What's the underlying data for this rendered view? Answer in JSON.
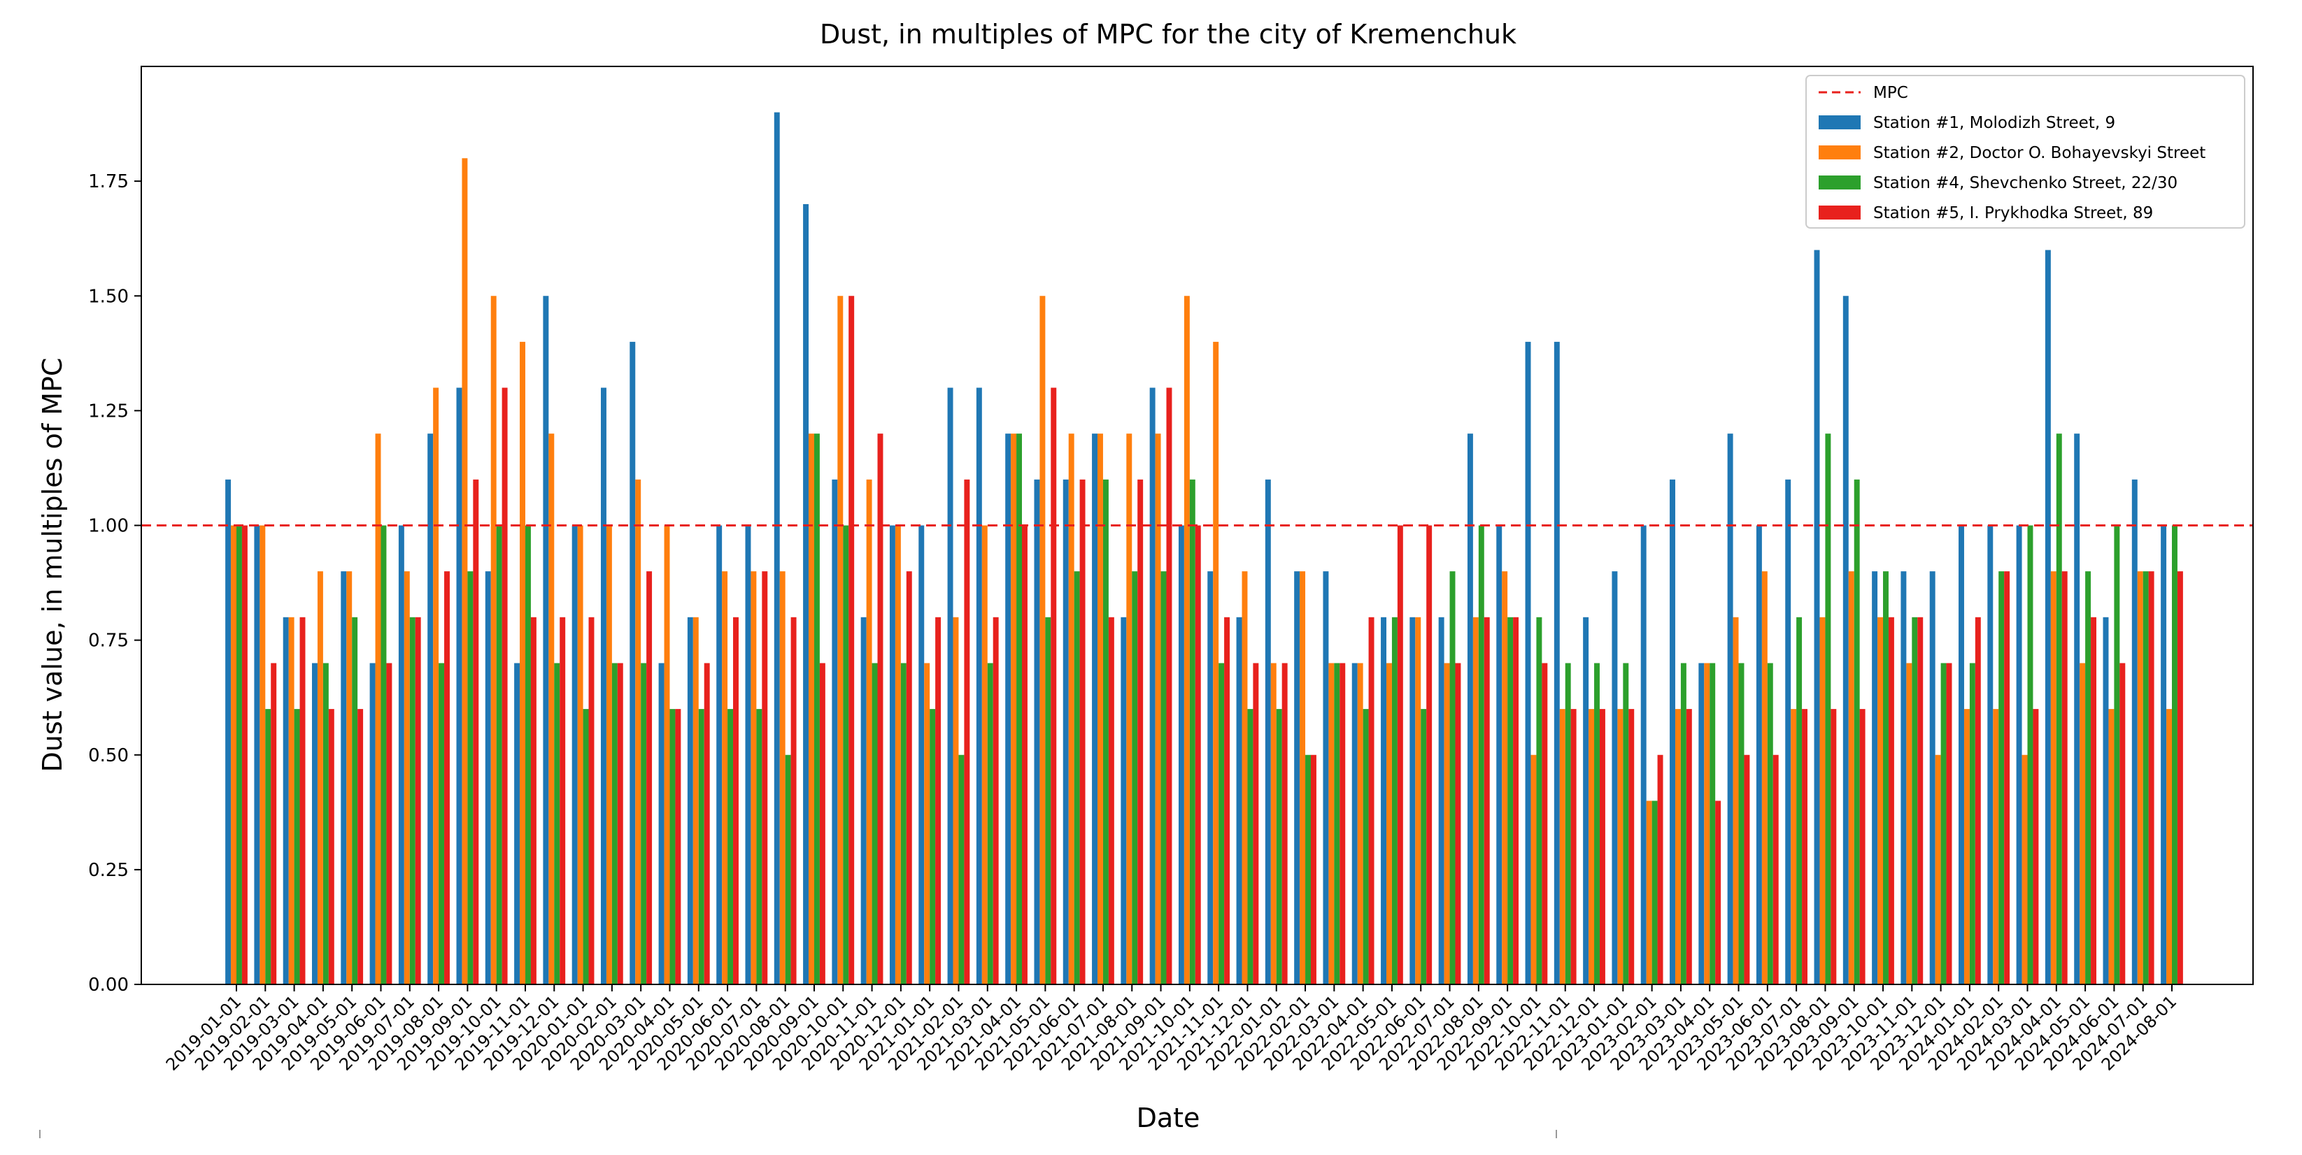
{
  "chart_data": {
    "type": "bar",
    "title": "Dust, in multiples of MPC for the city of Kremenchuk",
    "xlabel": "Date",
    "ylabel": "Dust value, in multiples of MPC",
    "ylim": [
      0,
      2.0
    ],
    "yticks": [
      "0.00",
      "0.25",
      "0.50",
      "0.75",
      "1.00",
      "1.25",
      "1.50",
      "1.75"
    ],
    "grid": false,
    "legend_position": "top-right",
    "reference_line": {
      "name": "MPC",
      "value": 1.0,
      "color": "#e8211d",
      "style": "dashed"
    },
    "categories": [
      "2019-01-01",
      "2019-02-01",
      "2019-03-01",
      "2019-04-01",
      "2019-05-01",
      "2019-06-01",
      "2019-07-01",
      "2019-08-01",
      "2019-09-01",
      "2019-10-01",
      "2019-11-01",
      "2019-12-01",
      "2020-01-01",
      "2020-02-01",
      "2020-03-01",
      "2020-04-01",
      "2020-05-01",
      "2020-06-01",
      "2020-07-01",
      "2020-08-01",
      "2020-09-01",
      "2020-10-01",
      "2020-11-01",
      "2020-12-01",
      "2021-01-01",
      "2021-02-01",
      "2021-03-01",
      "2021-04-01",
      "2021-05-01",
      "2021-06-01",
      "2021-07-01",
      "2021-08-01",
      "2021-09-01",
      "2021-10-01",
      "2021-11-01",
      "2021-12-01",
      "2022-01-01",
      "2022-02-01",
      "2022-03-01",
      "2022-04-01",
      "2022-05-01",
      "2022-06-01",
      "2022-07-01",
      "2022-08-01",
      "2022-09-01",
      "2022-10-01",
      "2022-11-01",
      "2022-12-01",
      "2023-01-01",
      "2023-02-01",
      "2023-03-01",
      "2023-04-01",
      "2023-05-01",
      "2023-06-01",
      "2023-07-01",
      "2023-08-01",
      "2023-09-01",
      "2023-10-01",
      "2023-11-01",
      "2023-12-01",
      "2024-01-01",
      "2024-02-01",
      "2024-03-01",
      "2024-04-01",
      "2024-05-01",
      "2024-06-01",
      "2024-07-01",
      "2024-08-01"
    ],
    "series": [
      {
        "name": "Station #1, Molodizh Street, 9",
        "color": "#1f77b4",
        "values": [
          1.1,
          1.0,
          0.8,
          0.7,
          0.9,
          0.7,
          1.0,
          1.2,
          1.3,
          0.9,
          0.7,
          1.5,
          1.0,
          1.3,
          1.4,
          0.7,
          0.8,
          1.0,
          1.0,
          1.9,
          1.7,
          1.1,
          0.8,
          1.0,
          1.0,
          1.3,
          1.3,
          1.2,
          1.1,
          1.1,
          1.2,
          0.8,
          1.3,
          1.0,
          0.9,
          0.8,
          1.1,
          0.9,
          0.9,
          0.7,
          0.8,
          0.8,
          0.8,
          1.2,
          1.0,
          1.4,
          1.4,
          0.8,
          0.9,
          1.0,
          1.1,
          0.7,
          1.2,
          1.0,
          1.1,
          1.6,
          1.5,
          0.9,
          0.9,
          0.9,
          1.0,
          1.0,
          1.0,
          1.6,
          1.2,
          0.8,
          1.1,
          1.0
        ]
      },
      {
        "name": "Station #2, Doctor O. Bohayevskyi Street",
        "color": "#ff7f0e",
        "values": [
          1.0,
          1.0,
          0.8,
          0.9,
          0.9,
          1.2,
          0.9,
          1.3,
          1.8,
          1.5,
          1.4,
          1.2,
          1.0,
          1.0,
          1.1,
          1.0,
          0.8,
          0.9,
          0.9,
          0.9,
          1.2,
          1.5,
          1.1,
          1.0,
          0.7,
          0.8,
          1.0,
          1.2,
          1.5,
          1.2,
          1.2,
          1.2,
          1.2,
          1.5,
          1.4,
          0.9,
          0.7,
          0.9,
          0.7,
          0.7,
          0.7,
          0.8,
          0.7,
          0.8,
          0.9,
          0.5,
          0.6,
          0.6,
          0.6,
          0.4,
          0.6,
          0.7,
          0.8,
          0.9,
          0.6,
          0.8,
          0.9,
          0.8,
          0.7,
          0.5,
          0.6,
          0.6,
          0.5,
          0.9,
          0.7,
          0.6,
          0.9,
          0.6
        ]
      },
      {
        "name": "Station #4, Shevchenko Street, 22/30",
        "color": "#2ca02c",
        "values": [
          1.0,
          0.6,
          0.6,
          0.7,
          0.8,
          1.0,
          0.8,
          0.7,
          0.9,
          1.0,
          1.0,
          0.7,
          0.6,
          0.7,
          0.7,
          0.6,
          0.6,
          0.6,
          0.6,
          0.5,
          1.2,
          1.0,
          0.7,
          0.7,
          0.6,
          0.5,
          0.7,
          1.2,
          0.8,
          0.9,
          1.1,
          0.9,
          0.9,
          1.1,
          0.7,
          0.6,
          0.6,
          0.5,
          0.7,
          0.6,
          0.8,
          0.6,
          0.9,
          1.0,
          0.8,
          0.8,
          0.7,
          0.7,
          0.7,
          0.4,
          0.7,
          0.7,
          0.7,
          0.7,
          0.8,
          1.2,
          1.1,
          0.9,
          0.8,
          0.7,
          0.7,
          0.9,
          1.0,
          1.2,
          0.9,
          1.0,
          0.9,
          1.0
        ]
      },
      {
        "name": "Station #5, I. Prykhodka Street, 89",
        "color": "#e8211d",
        "values": [
          1.0,
          0.7,
          0.8,
          0.6,
          0.6,
          0.7,
          0.8,
          0.9,
          1.1,
          1.3,
          0.8,
          0.8,
          0.8,
          0.7,
          0.9,
          0.6,
          0.7,
          0.8,
          0.9,
          0.8,
          0.7,
          1.5,
          1.2,
          0.9,
          0.8,
          1.1,
          0.8,
          1.0,
          1.3,
          1.1,
          0.8,
          1.1,
          1.3,
          1.0,
          0.8,
          0.7,
          0.7,
          0.5,
          0.7,
          0.8,
          1.0,
          1.0,
          0.7,
          0.8,
          0.8,
          0.7,
          0.6,
          0.6,
          0.6,
          0.5,
          0.6,
          0.4,
          0.5,
          0.5,
          0.6,
          0.6,
          0.6,
          0.8,
          0.8,
          0.7,
          0.8,
          0.9,
          0.6,
          0.9,
          0.8,
          0.7,
          0.9,
          0.9
        ]
      }
    ]
  }
}
